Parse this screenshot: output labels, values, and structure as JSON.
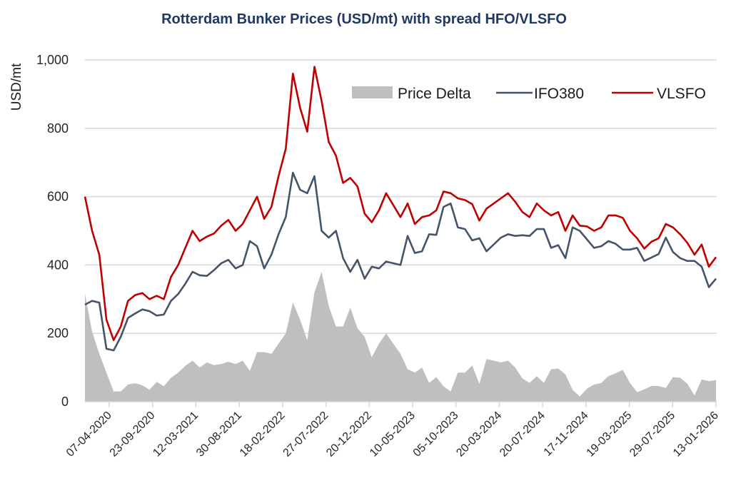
{
  "chart_data": {
    "type": "line",
    "title": "Rotterdam Bunker Prices (USD/mt) with spread HFO/VLSFO",
    "xlabel": "",
    "ylabel": "USD/mt",
    "ylim": [
      0,
      1000
    ],
    "yticks": [
      0,
      200,
      400,
      600,
      800,
      1000
    ],
    "ytick_labels": [
      "0",
      "200",
      "400",
      "600",
      "800",
      "1,000"
    ],
    "x_tick_labels": [
      "07-04-2020",
      "23-09-2020",
      "12-03-2021",
      "30-08-2021",
      "18-02-2022",
      "27-07-2022",
      "20-12-2022",
      "10-05-2023",
      "05-10-2023",
      "20-03-2024",
      "20-07-2024",
      "17-11-2024",
      "19-03-2025",
      "29-07-2025",
      "13-01-2026"
    ],
    "grid": "horizontal",
    "legend_position": "top-right",
    "series": [
      {
        "name": "Price Delta",
        "kind": "area",
        "color": "#bfbfbf",
        "values": [
          316,
          205,
          140,
          85,
          30,
          30,
          50,
          54,
          48,
          35,
          58,
          45,
          70,
          85,
          105,
          120,
          100,
          115,
          107,
          110,
          117,
          110,
          120,
          90,
          145,
          145,
          140,
          170,
          200,
          290,
          240,
          180,
          320,
          380,
          280,
          220,
          220,
          275,
          215,
          190,
          130,
          170,
          200,
          170,
          140,
          95,
          85,
          100,
          55,
          72,
          45,
          30,
          85,
          85,
          106,
          52,
          125,
          120,
          115,
          120,
          100,
          68,
          55,
          75,
          55,
          95,
          97,
          80,
          35,
          15,
          38,
          50,
          55,
          75,
          83,
          93,
          55,
          28,
          36,
          46,
          46,
          40,
          72,
          70,
          53,
          18,
          65,
          60,
          63
        ]
      },
      {
        "name": "IFO380",
        "kind": "line",
        "color": "#44546a",
        "values": [
          284,
          295,
          290,
          155,
          150,
          190,
          245,
          258,
          270,
          265,
          252,
          255,
          295,
          315,
          345,
          380,
          370,
          368,
          385,
          405,
          415,
          390,
          400,
          470,
          455,
          390,
          430,
          490,
          540,
          670,
          620,
          610,
          660,
          500,
          480,
          500,
          420,
          380,
          415,
          360,
          395,
          390,
          410,
          405,
          400,
          485,
          435,
          440,
          490,
          488,
          570,
          580,
          510,
          505,
          472,
          478,
          440,
          460,
          480,
          490,
          485,
          487,
          485,
          505,
          505,
          450,
          458,
          420,
          510,
          500,
          475,
          450,
          455,
          470,
          462,
          445,
          445,
          450,
          412,
          422,
          432,
          480,
          438,
          420,
          412,
          412,
          395,
          335,
          360
        ]
      },
      {
        "name": "VLSFO",
        "kind": "line",
        "color": "#c00000",
        "values": [
          600,
          500,
          430,
          240,
          180,
          220,
          295,
          312,
          318,
          300,
          310,
          300,
          365,
          400,
          450,
          500,
          470,
          483,
          492,
          515,
          532,
          500,
          520,
          560,
          600,
          535,
          570,
          660,
          740,
          960,
          860,
          790,
          980,
          880,
          760,
          720,
          640,
          655,
          630,
          550,
          525,
          560,
          610,
          575,
          540,
          580,
          520,
          540,
          545,
          560,
          615,
          610,
          595,
          590,
          578,
          530,
          565,
          580,
          595,
          610,
          585,
          555,
          540,
          580,
          560,
          545,
          555,
          500,
          545,
          515,
          513,
          500,
          510,
          545,
          545,
          538,
          500,
          478,
          448,
          468,
          478,
          520,
          510,
          490,
          465,
          430,
          460,
          395,
          423
        ]
      }
    ]
  }
}
